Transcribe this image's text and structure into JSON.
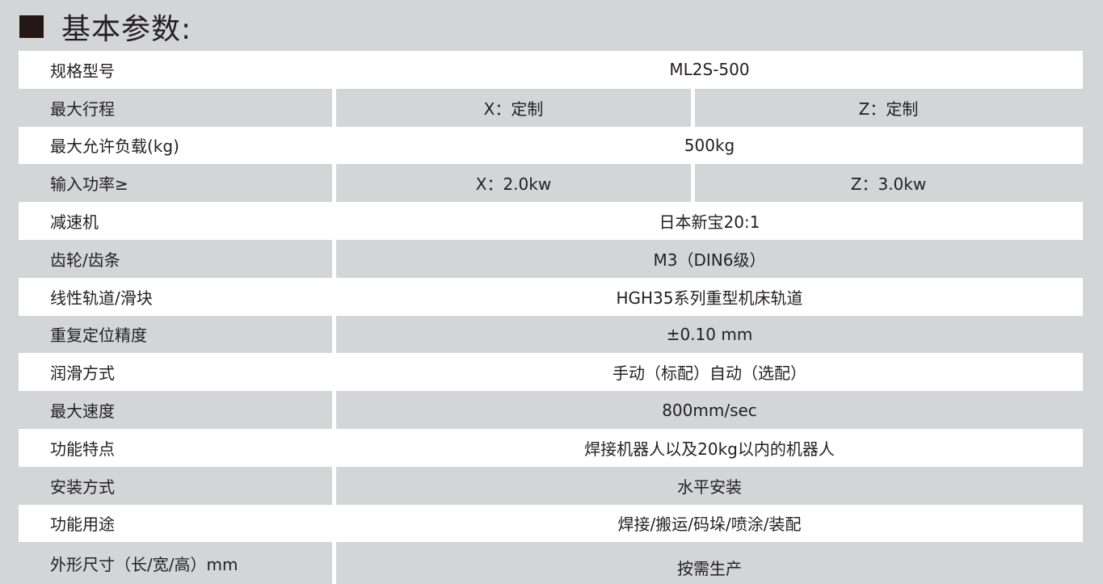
{
  "title": "基本参数:",
  "rows": [
    {
      "label": "规格型号",
      "value": "ML2S-500"
    },
    {
      "label": "最大行程",
      "x": "X：定制",
      "z": "Z：定制"
    },
    {
      "label": "最大允许负载(kg)",
      "value": "500kg"
    },
    {
      "label": "输入功率≥",
      "x": "X：2.0kw",
      "z": "Z：3.0kw"
    },
    {
      "label": "减速机",
      "value": "日本新宝20:1"
    },
    {
      "label": "齿轮/齿条",
      "value": "M3（DIN6级）"
    },
    {
      "label": "线性轨道/滑块",
      "value": "HGH35系列重型机床轨道"
    },
    {
      "label": "重复定位精度",
      "value": "±0.10 mm"
    },
    {
      "label": "润滑方式",
      "value": "手动（标配）自动（选配）"
    },
    {
      "label": "最大速度",
      "value": "800mm/sec"
    },
    {
      "label": "功能特点",
      "value": "焊接机器人以及20kg以内的机器人"
    },
    {
      "label": "安装方式",
      "value": "水平安装"
    },
    {
      "label": "功能用途",
      "value": "焊接/搬运/码垛/喷涂/装配"
    },
    {
      "label": "外形尺寸（长/宽/高）mm",
      "value": "按需生产"
    }
  ]
}
